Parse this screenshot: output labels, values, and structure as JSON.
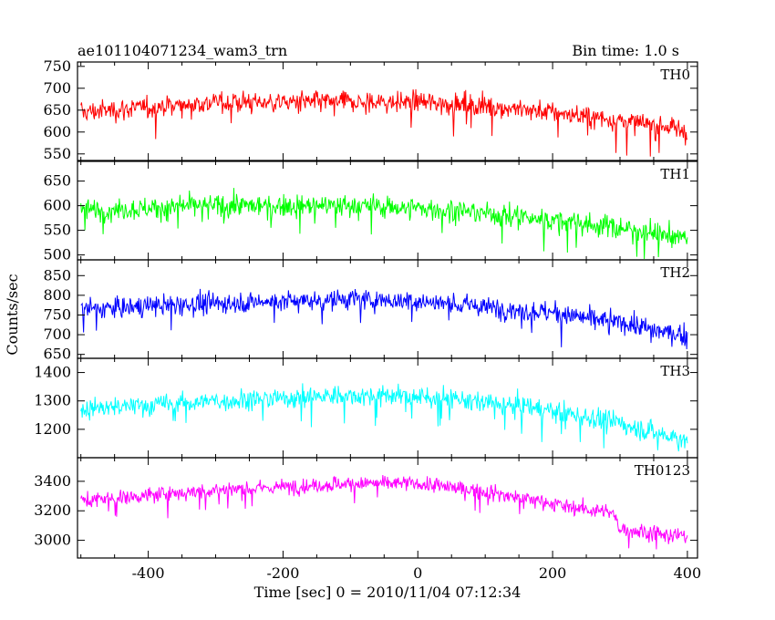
{
  "chart_data": {
    "type": "line",
    "title": "ae101104071234_wam3_trn",
    "subtitle": "Bin time: 1.0 s",
    "xlabel": "Time [sec] 0 = 2010/11/04 07:12:34",
    "ylabel": "Counts/sec",
    "xlim": [
      -505,
      415
    ],
    "x_ticks": [
      -400,
      -200,
      0,
      200,
      400
    ],
    "x_range": [
      -500,
      400
    ],
    "bin_time": 1.0,
    "panels": [
      {
        "name": "TH0",
        "color": "#ff0000",
        "ylim": [
          535,
          760
        ],
        "y_ticks": [
          550,
          600,
          650,
          700,
          750
        ],
        "trend": [
          [
            -500,
            645
          ],
          [
            -300,
            668
          ],
          [
            -100,
            668
          ],
          [
            0,
            668
          ],
          [
            100,
            660
          ],
          [
            200,
            645
          ],
          [
            300,
            625
          ],
          [
            400,
            605
          ]
        ],
        "noise": 28
      },
      {
        "name": "TH1",
        "color": "#00ff00",
        "ylim": [
          490,
          690
        ],
        "y_ticks": [
          500,
          550,
          600,
          650
        ],
        "trend": [
          [
            -500,
            590
          ],
          [
            -300,
            600
          ],
          [
            -100,
            600
          ],
          [
            0,
            595
          ],
          [
            100,
            585
          ],
          [
            200,
            570
          ],
          [
            300,
            555
          ],
          [
            400,
            535
          ]
        ],
        "noise": 26
      },
      {
        "name": "TH2",
        "color": "#0000ff",
        "ylim": [
          640,
          890
        ],
        "y_ticks": [
          650,
          700,
          750,
          800,
          850
        ],
        "trend": [
          [
            -500,
            765
          ],
          [
            -300,
            780
          ],
          [
            -100,
            790
          ],
          [
            0,
            785
          ],
          [
            100,
            770
          ],
          [
            200,
            755
          ],
          [
            300,
            730
          ],
          [
            400,
            695
          ]
        ],
        "noise": 30
      },
      {
        "name": "TH3",
        "color": "#00ffff",
        "ylim": [
          1100,
          1450
        ],
        "y_ticks": [
          1200,
          1300,
          1400
        ],
        "trend": [
          [
            -500,
            1270
          ],
          [
            -300,
            1300
          ],
          [
            -100,
            1320
          ],
          [
            0,
            1315
          ],
          [
            100,
            1295
          ],
          [
            200,
            1265
          ],
          [
            300,
            1220
          ],
          [
            400,
            1160
          ]
        ],
        "noise": 42
      },
      {
        "name": "TH0123",
        "color": "#ff00ff",
        "ylim": [
          2880,
          3560
        ],
        "y_ticks": [
          3000,
          3200,
          3400
        ],
        "trend": [
          [
            -500,
            3270
          ],
          [
            -300,
            3340
          ],
          [
            -100,
            3385
          ],
          [
            0,
            3385
          ],
          [
            100,
            3330
          ],
          [
            200,
            3250
          ],
          [
            290,
            3180
          ],
          [
            300,
            3080
          ],
          [
            400,
            3020
          ]
        ],
        "noise": 60
      }
    ],
    "grid": false,
    "legend": "panel labels top-right"
  }
}
